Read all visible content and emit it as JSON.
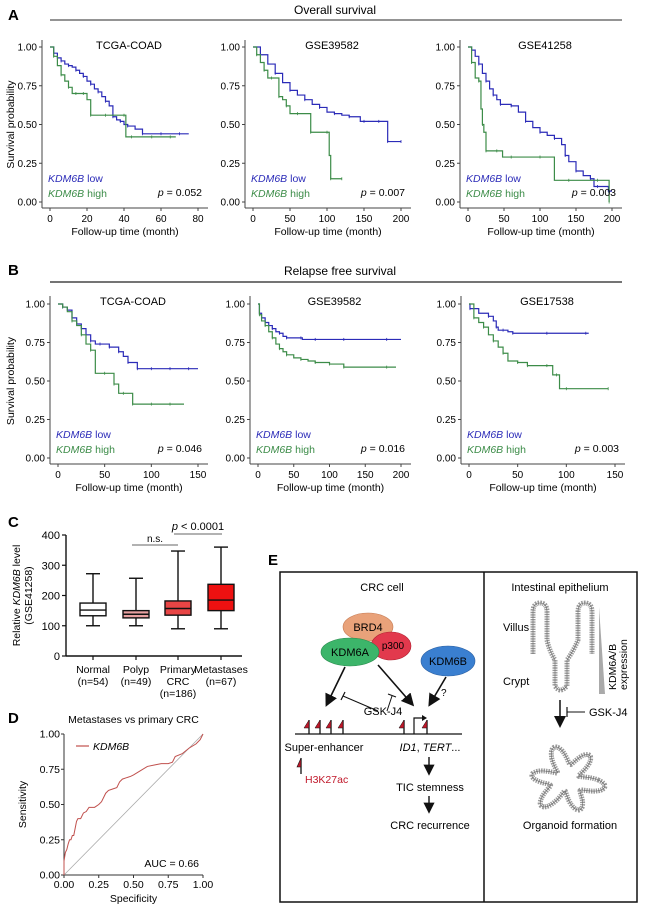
{
  "colors": {
    "low": "#2b2bb8",
    "high": "#3c8c48",
    "axis": "#444444",
    "roc": "#c0504d",
    "diag": "#aaaaaa",
    "h3k27ac": "#c0182a",
    "box_normal": "#ffffff",
    "box_polyp": "#e8a0a0",
    "box_primary": "#e84545",
    "box_metastases": "#ee1111",
    "brd4": "#e9a27a",
    "p300": "#e2394d",
    "kdm6a": "#3cb56a",
    "kdm6b": "#3a7fd0"
  },
  "panel_A": {
    "letter": "A",
    "section_title": "Overall survival"
  },
  "panel_B": {
    "letter": "B",
    "section_title": "Relapse free survival"
  },
  "panel_C": {
    "letter": "C"
  },
  "panel_D": {
    "letter": "D"
  },
  "panel_E": {
    "letter": "E",
    "left_title": "CRC cell",
    "right_title": "Intestinal epithelium",
    "brd4": "BRD4",
    "p300": "p300",
    "kdm6a": "KDM6A",
    "kdm6b": "KDM6B",
    "question": "?",
    "gskj4": "GSK-J4",
    "super_enhancer": "Super-enhancer",
    "genes_italic": "ID1",
    "genes_rest": ", TERT...",
    "genes_italic2": "TERT",
    "h3k27ac": "H3K27ac",
    "tic": "TIC stemness",
    "recurrence": "CRC recurrence",
    "villus": "Villus",
    "crypt": "Crypt",
    "expression_1": "KDM6A/B",
    "expression_2": "expression",
    "gskj4_right": "GSK-J4",
    "organoid": "Organoid formation"
  },
  "chart_data": [
    {
      "id": "A1",
      "type": "line",
      "subtype": "kaplan-meier",
      "title": "TCGA-COAD",
      "xlabel": "Follow-up time (month)",
      "ylabel": "Survival probability",
      "xlim": [
        0,
        80
      ],
      "ylim": [
        0,
        1
      ],
      "xticks": [
        "0",
        "20",
        "40",
        "60",
        "80"
      ],
      "yticks": [
        "0.00",
        "0.25",
        "0.50",
        "0.75",
        "1.00"
      ],
      "legend": [
        "KDM6B low",
        "KDM6B high"
      ],
      "legend_placement": "bottom-left",
      "annotation": "p = 0.052",
      "series": [
        {
          "name": "KDM6B low",
          "x": [
            0,
            2,
            4,
            6,
            8,
            10,
            12,
            14,
            16,
            18,
            20,
            22,
            24,
            26,
            28,
            30,
            32,
            34,
            36,
            38,
            40,
            42,
            46,
            50,
            55,
            60,
            65,
            70,
            75
          ],
          "y": [
            1.0,
            0.96,
            0.93,
            0.91,
            0.89,
            0.88,
            0.87,
            0.85,
            0.83,
            0.81,
            0.78,
            0.76,
            0.73,
            0.71,
            0.68,
            0.65,
            0.62,
            0.55,
            0.53,
            0.52,
            0.5,
            0.49,
            0.47,
            0.44,
            0.44,
            0.44,
            0.44,
            0.44,
            0.44
          ]
        },
        {
          "name": "KDM6B high",
          "x": [
            0,
            2,
            4,
            6,
            8,
            10,
            12,
            14,
            16,
            18,
            20,
            22,
            24,
            30,
            36,
            40,
            41,
            44,
            50,
            55,
            60,
            65,
            68
          ],
          "y": [
            1.0,
            0.94,
            0.88,
            0.82,
            0.78,
            0.74,
            0.7,
            0.7,
            0.7,
            0.7,
            0.66,
            0.56,
            0.56,
            0.56,
            0.56,
            0.56,
            0.42,
            0.42,
            0.42,
            0.42,
            0.42,
            0.42,
            0.42
          ]
        }
      ]
    },
    {
      "id": "A2",
      "type": "line",
      "subtype": "kaplan-meier",
      "title": "GSE39582",
      "xlabel": "Follow-up time (month)",
      "ylabel": "",
      "xlim": [
        0,
        200
      ],
      "ylim": [
        0,
        1
      ],
      "xticks": [
        "0",
        "50",
        "100",
        "150",
        "200"
      ],
      "yticks": [
        "0.00",
        "0.25",
        "0.50",
        "0.75",
        "1.00"
      ],
      "legend": [
        "KDM6B low",
        "KDM6B high"
      ],
      "legend_placement": "bottom-left",
      "annotation": "p = 0.007",
      "series": [
        {
          "name": "KDM6B low",
          "x": [
            0,
            10,
            20,
            30,
            40,
            50,
            60,
            70,
            80,
            90,
            100,
            110,
            120,
            130,
            145,
            150,
            160,
            170,
            180,
            182,
            190,
            200
          ],
          "y": [
            1.0,
            0.95,
            0.89,
            0.83,
            0.77,
            0.72,
            0.69,
            0.66,
            0.63,
            0.61,
            0.58,
            0.57,
            0.56,
            0.55,
            0.52,
            0.52,
            0.52,
            0.52,
            0.52,
            0.39,
            0.39,
            0.39
          ]
        },
        {
          "name": "KDM6B high",
          "x": [
            0,
            5,
            10,
            15,
            20,
            25,
            30,
            35,
            40,
            45,
            50,
            60,
            70,
            78,
            90,
            100,
            103,
            105,
            110,
            120
          ],
          "y": [
            1.0,
            0.95,
            0.9,
            0.85,
            0.8,
            0.8,
            0.8,
            0.68,
            0.66,
            0.62,
            0.57,
            0.57,
            0.57,
            0.45,
            0.45,
            0.45,
            0.3,
            0.15,
            0.15,
            0.15
          ]
        }
      ]
    },
    {
      "id": "A3",
      "type": "line",
      "subtype": "kaplan-meier",
      "title": "GSE41258",
      "xlabel": "Follow-up time (month)",
      "ylabel": "",
      "xlim": [
        0,
        200
      ],
      "ylim": [
        0,
        1
      ],
      "xticks": [
        "0",
        "50",
        "100",
        "150",
        "200"
      ],
      "yticks": [
        "0.00",
        "0.25",
        "0.50",
        "0.75",
        "1.00"
      ],
      "legend": [
        "KDM6B low",
        "KDM6B high"
      ],
      "legend_placement": "bottom-left",
      "annotation": "p = 0.003",
      "series": [
        {
          "name": "KDM6B low",
          "x": [
            0,
            5,
            10,
            15,
            20,
            25,
            30,
            35,
            40,
            45,
            50,
            60,
            70,
            80,
            90,
            100,
            110,
            120,
            130,
            135,
            140,
            150,
            160,
            170,
            175,
            180,
            190,
            195,
            200
          ],
          "y": [
            1.0,
            0.98,
            0.94,
            0.89,
            0.83,
            0.78,
            0.73,
            0.69,
            0.66,
            0.63,
            0.63,
            0.62,
            0.58,
            0.52,
            0.48,
            0.45,
            0.43,
            0.41,
            0.37,
            0.3,
            0.26,
            0.2,
            0.17,
            0.15,
            0.1,
            0.1,
            0.1,
            0.07,
            0.07
          ]
        },
        {
          "name": "KDM6B high",
          "x": [
            0,
            5,
            10,
            15,
            18,
            20,
            22,
            25,
            30,
            40,
            48,
            60,
            80,
            100,
            120,
            140,
            160,
            180,
            195,
            196
          ],
          "y": [
            1.0,
            0.9,
            0.8,
            0.78,
            0.6,
            0.5,
            0.45,
            0.33,
            0.33,
            0.33,
            0.29,
            0.29,
            0.29,
            0.29,
            0.14,
            0.14,
            0.14,
            0.14,
            0.14,
            0.0
          ]
        }
      ]
    },
    {
      "id": "B1",
      "type": "line",
      "subtype": "kaplan-meier",
      "title": "TCGA-COAD",
      "xlabel": "Follow-up time (month)",
      "ylabel": "Survival probability",
      "xlim": [
        0,
        150
      ],
      "ylim": [
        0,
        1
      ],
      "xticks": [
        "0",
        "50",
        "100",
        "150"
      ],
      "yticks": [
        "0.00",
        "0.25",
        "0.50",
        "0.75",
        "1.00"
      ],
      "legend": [
        "KDM6B low",
        "KDM6B high"
      ],
      "legend_placement": "bottom-left",
      "annotation": "p = 0.046",
      "series": [
        {
          "name": "KDM6B low",
          "x": [
            0,
            5,
            10,
            15,
            20,
            25,
            30,
            35,
            40,
            45,
            50,
            55,
            60,
            65,
            70,
            75,
            80,
            85,
            90,
            100,
            110,
            120,
            130,
            140,
            150
          ],
          "y": [
            1.0,
            0.98,
            0.96,
            0.91,
            0.87,
            0.84,
            0.8,
            0.76,
            0.74,
            0.74,
            0.74,
            0.72,
            0.72,
            0.69,
            0.66,
            0.62,
            0.62,
            0.58,
            0.58,
            0.58,
            0.58,
            0.58,
            0.58,
            0.58,
            0.58
          ]
        },
        {
          "name": "KDM6B high",
          "x": [
            0,
            5,
            10,
            15,
            20,
            25,
            30,
            35,
            40,
            50,
            55,
            60,
            65,
            70,
            75,
            80,
            90,
            100,
            110,
            120,
            135
          ],
          "y": [
            1.0,
            0.98,
            0.95,
            0.89,
            0.86,
            0.8,
            0.74,
            0.7,
            0.55,
            0.55,
            0.55,
            0.48,
            0.42,
            0.42,
            0.42,
            0.35,
            0.35,
            0.35,
            0.35,
            0.35,
            0.35
          ]
        }
      ]
    },
    {
      "id": "B2",
      "type": "line",
      "subtype": "kaplan-meier",
      "title": "GSE39582",
      "xlabel": "Follow-up time (month)",
      "ylabel": "",
      "xlim": [
        0,
        200
      ],
      "ylim": [
        0,
        1
      ],
      "xticks": [
        "0",
        "50",
        "100",
        "150",
        "200"
      ],
      "yticks": [
        "0.00",
        "0.25",
        "0.50",
        "0.75",
        "1.00"
      ],
      "legend": [
        "KDM6B low",
        "KDM6B high"
      ],
      "legend_placement": "bottom-left",
      "annotation": "p = 0.016",
      "series": [
        {
          "name": "KDM6B low",
          "x": [
            0,
            2,
            5,
            10,
            15,
            20,
            25,
            30,
            35,
            40,
            50,
            60,
            62,
            80,
            100,
            120,
            150,
            180,
            200
          ],
          "y": [
            1.0,
            0.94,
            0.91,
            0.88,
            0.86,
            0.84,
            0.82,
            0.81,
            0.79,
            0.78,
            0.78,
            0.78,
            0.77,
            0.77,
            0.77,
            0.77,
            0.77,
            0.77,
            0.77
          ]
        },
        {
          "name": "KDM6B high",
          "x": [
            0,
            2,
            5,
            10,
            15,
            20,
            25,
            30,
            35,
            40,
            50,
            60,
            70,
            80,
            90,
            100,
            110,
            120,
            150,
            180,
            193
          ],
          "y": [
            1.0,
            0.93,
            0.89,
            0.86,
            0.82,
            0.78,
            0.74,
            0.71,
            0.69,
            0.67,
            0.65,
            0.64,
            0.63,
            0.62,
            0.62,
            0.61,
            0.61,
            0.59,
            0.59,
            0.59,
            0.59
          ]
        }
      ]
    },
    {
      "id": "B3",
      "type": "line",
      "subtype": "kaplan-meier",
      "title": "GSE17538",
      "xlabel": "Follow-up time (month)",
      "ylabel": "",
      "xlim": [
        0,
        150
      ],
      "ylim": [
        0,
        1
      ],
      "xticks": [
        "0",
        "50",
        "100",
        "150"
      ],
      "yticks": [
        "0.00",
        "0.25",
        "0.50",
        "0.75",
        "1.00"
      ],
      "legend": [
        "KDM6B low",
        "KDM6B high"
      ],
      "legend_placement": "bottom-left",
      "annotation": "p = 0.003",
      "series": [
        {
          "name": "KDM6B low",
          "x": [
            0,
            1,
            10,
            20,
            25,
            28,
            30,
            35,
            40,
            45,
            60,
            80,
            100,
            120,
            123
          ],
          "y": [
            1.0,
            0.97,
            0.94,
            0.92,
            0.89,
            0.85,
            0.83,
            0.83,
            0.82,
            0.81,
            0.81,
            0.81,
            0.81,
            0.81,
            0.81
          ]
        },
        {
          "name": "KDM6B high",
          "x": [
            0,
            5,
            10,
            15,
            20,
            25,
            30,
            35,
            40,
            50,
            55,
            60,
            70,
            80,
            86,
            90,
            93,
            100,
            120,
            143
          ],
          "y": [
            1.0,
            0.91,
            0.88,
            0.85,
            0.8,
            0.76,
            0.72,
            0.68,
            0.63,
            0.62,
            0.62,
            0.6,
            0.6,
            0.6,
            0.54,
            0.54,
            0.45,
            0.45,
            0.45,
            0.45
          ]
        }
      ]
    },
    {
      "id": "C",
      "type": "box",
      "title": "",
      "xlabel": "",
      "ylabel_line1_pre": "Relative ",
      "ylabel_line1_ital": "KDM6B",
      "ylabel_line1_post": " level",
      "ylabel_line2": "(GSE41258)",
      "ylim": [
        0,
        400
      ],
      "yticks": [
        "0",
        "100",
        "200",
        "300",
        "400"
      ],
      "categories": [
        {
          "label1": "Normal",
          "label2": "(n=54)",
          "label3": ""
        },
        {
          "label1": "Polyp",
          "label2": "(n=49)",
          "label3": ""
        },
        {
          "label1": "Primary",
          "label2": "CRC",
          "label3": "(n=186)"
        },
        {
          "label1": "Metastases",
          "label2": "(n=67)",
          "label3": ""
        }
      ],
      "boxes": [
        {
          "min": 100,
          "q1": 133,
          "median": 152,
          "q3": 175,
          "max": 272
        },
        {
          "min": 100,
          "q1": 126,
          "median": 138,
          "q3": 150,
          "max": 257
        },
        {
          "min": 90,
          "q1": 135,
          "median": 157,
          "q3": 182,
          "max": 347
        },
        {
          "min": 90,
          "q1": 150,
          "median": 185,
          "q3": 237,
          "max": 360
        }
      ],
      "annotations": [
        {
          "text": "n.s.",
          "from": 1,
          "to": 2
        },
        {
          "text": "p < 0.0001",
          "from": 2,
          "to": 3
        }
      ]
    },
    {
      "id": "D",
      "type": "line",
      "subtype": "roc",
      "title": "Metastases vs primary CRC",
      "xlabel": "Specificity",
      "ylabel": "Sensitivity",
      "xlim": [
        0,
        1
      ],
      "ylim": [
        0,
        1
      ],
      "xticks": [
        "0.00",
        "0.25",
        "0.50",
        "0.75",
        "1.00"
      ],
      "yticks": [
        "0.00",
        "0.25",
        "0.50",
        "0.75",
        "1.00"
      ],
      "legend": [
        "KDM6B"
      ],
      "legend_placement": "top-left",
      "annotation": "AUC = 0.66",
      "series": [
        {
          "name": "KDM6B",
          "x": [
            0,
            0.0,
            0.01,
            0.02,
            0.03,
            0.04,
            0.05,
            0.06,
            0.07,
            0.08,
            0.09,
            0.1,
            0.12,
            0.14,
            0.16,
            0.18,
            0.2,
            0.22,
            0.25,
            0.27,
            0.3,
            0.32,
            0.35,
            0.38,
            0.4,
            0.42,
            0.45,
            0.48,
            0.5,
            0.55,
            0.6,
            0.65,
            0.7,
            0.75,
            0.78,
            0.8,
            0.85,
            0.9,
            0.95,
            0.98,
            1.0
          ],
          "y": [
            0,
            0.1,
            0.16,
            0.18,
            0.22,
            0.25,
            0.25,
            0.28,
            0.28,
            0.33,
            0.38,
            0.4,
            0.4,
            0.44,
            0.45,
            0.48,
            0.48,
            0.48,
            0.5,
            0.52,
            0.58,
            0.6,
            0.61,
            0.62,
            0.66,
            0.68,
            0.69,
            0.7,
            0.71,
            0.74,
            0.77,
            0.78,
            0.79,
            0.79,
            0.8,
            0.84,
            0.86,
            0.9,
            0.93,
            0.96,
            1.0
          ]
        },
        {
          "name": "reference",
          "x": [
            0,
            1
          ],
          "y": [
            0,
            1
          ]
        }
      ]
    }
  ]
}
